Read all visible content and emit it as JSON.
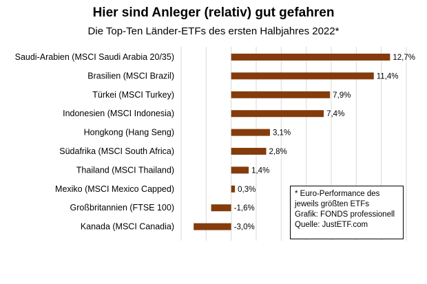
{
  "chart_data": {
    "type": "bar",
    "orientation": "horizontal",
    "title": "Hier sind Anleger (relativ) gut gefahren",
    "subtitle": "Die Top-Ten Länder-ETFs des ersten Halbjahres 2022*",
    "xlabel": "",
    "ylabel": "",
    "categories": [
      "Saudi-Arabien (MSCI Saudi Arabia 20/35)",
      "Brasilien (MSCI Brazil)",
      "Türkei (MSCI Turkey)",
      "Indonesien (MSCI Indonesia)",
      "Hongkong (Hang Seng)",
      "Südafrika (MSCI South Africa)",
      "Thailand (MSCI Thailand)",
      "Mexiko (MSCI Mexico Capped)",
      "Großbritannien (FTSE 100)",
      "Kanada (MSCI Canadia)"
    ],
    "values": [
      12.7,
      11.4,
      7.9,
      7.4,
      3.1,
      2.8,
      1.4,
      0.3,
      -1.6,
      -3.0
    ],
    "value_labels": [
      "12,7%",
      "11,4%",
      "7,9%",
      "7,4%",
      "3,1%",
      "2,8%",
      "1,4%",
      "0,3%",
      "-1,6%",
      "-3,0%"
    ],
    "xlim": [
      -4,
      14
    ],
    "grid": true,
    "legend": "none",
    "colors": {
      "bar": "#843c0c",
      "grid": "#d9d9d9",
      "text": "#000000"
    }
  },
  "note": {
    "lines": [
      "* Euro-Performance des",
      "jeweils größten ETFs",
      "Grafik: FONDS professionell",
      "Quelle: JustETF.com"
    ]
  }
}
